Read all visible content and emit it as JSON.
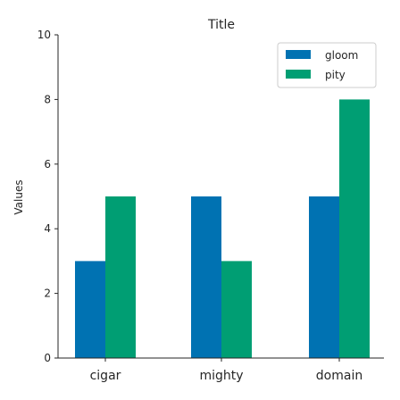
{
  "chart_data": {
    "type": "bar",
    "title": "Title",
    "xlabel": "",
    "ylabel": "Values",
    "categories": [
      "cigar",
      "mighty",
      "domain"
    ],
    "series": [
      {
        "name": "gloom",
        "color": "#0072b2",
        "values": [
          3,
          5,
          5
        ]
      },
      {
        "name": "pity",
        "color": "#009e73",
        "values": [
          5,
          3,
          8
        ]
      }
    ],
    "ylim": [
      0,
      10
    ],
    "yticks": [
      0,
      2,
      4,
      6,
      8,
      10
    ],
    "grid": false,
    "legend_position": "top-right"
  }
}
